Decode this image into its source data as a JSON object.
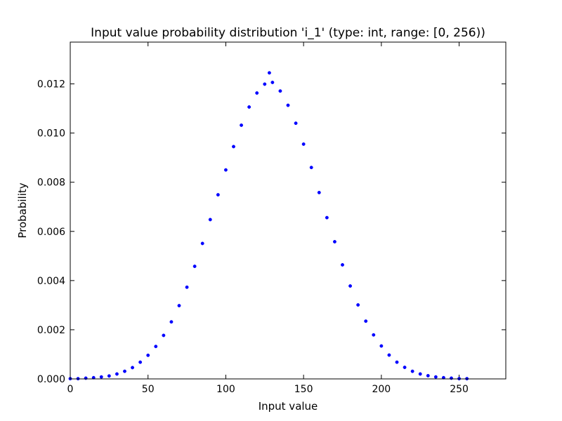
{
  "chart_data": {
    "type": "scatter",
    "title": "Input value probability distribution 'i_1' (type: int, range: [0, 256))",
    "xlabel": "Input value",
    "ylabel": "Probability",
    "xlim": [
      0,
      280
    ],
    "ylim": [
      0,
      0.0137
    ],
    "xticks": [
      0,
      50,
      100,
      150,
      200,
      250
    ],
    "xtick_labels": [
      "0",
      "50",
      "100",
      "150",
      "200",
      "250"
    ],
    "yticks": [
      0,
      0.002,
      0.004,
      0.006,
      0.008,
      0.01,
      0.012
    ],
    "ytick_labels": [
      "0.000",
      "0.002",
      "0.004",
      "0.006",
      "0.008",
      "0.010",
      "0.012"
    ],
    "grid": false,
    "marker_color": "#0000ff",
    "series": [
      {
        "x": [
          0,
          5,
          10,
          15,
          20,
          25,
          30,
          35,
          40,
          45,
          50,
          55,
          60,
          65,
          70,
          75,
          80,
          85,
          90,
          95,
          100,
          105,
          110,
          115,
          120,
          125,
          128,
          130,
          135,
          140,
          145,
          150,
          155,
          160,
          165,
          170,
          175,
          180,
          185,
          190,
          195,
          200,
          205,
          210,
          215,
          220,
          225,
          230,
          235,
          240,
          245,
          250,
          255
        ],
        "values": [
          1e-05,
          1e-05,
          3e-05,
          5e-05,
          8e-05,
          0.00012,
          0.0002,
          0.00031,
          0.00046,
          0.00068,
          0.00096,
          0.00132,
          0.00177,
          0.00232,
          0.00298,
          0.00373,
          0.00458,
          0.00551,
          0.00648,
          0.00749,
          0.0085,
          0.00945,
          0.01032,
          0.01106,
          0.01163,
          0.01199,
          0.01245,
          0.01206,
          0.01171,
          0.01113,
          0.0104,
          0.00955,
          0.0086,
          0.00758,
          0.00656,
          0.00558,
          0.00464,
          0.00378,
          0.00301,
          0.00235,
          0.00179,
          0.00134,
          0.00097,
          0.00068,
          0.00047,
          0.00031,
          0.0002,
          0.00013,
          8e-05,
          5e-05,
          3e-05,
          1e-05,
          1e-05
        ]
      }
    ]
  }
}
